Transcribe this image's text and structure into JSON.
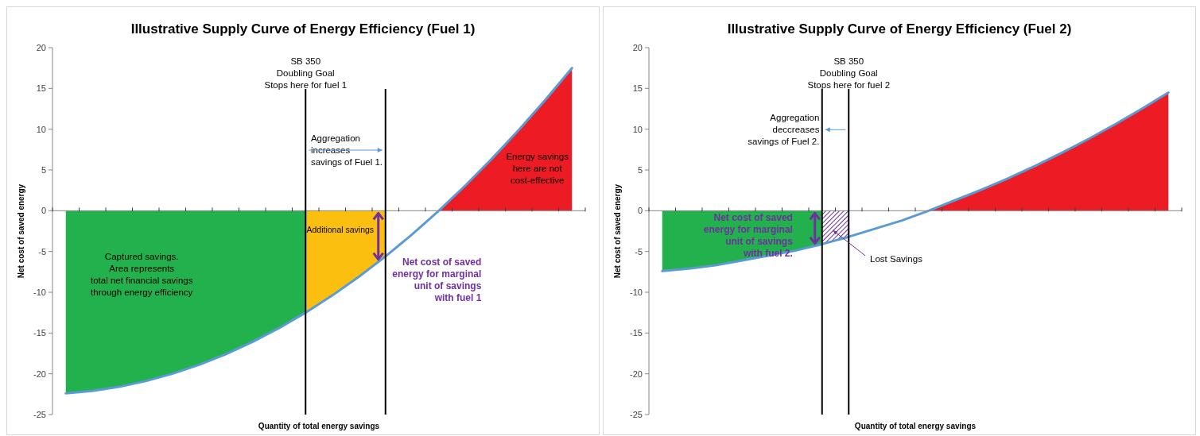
{
  "chart_data": [
    {
      "type": "area",
      "title": "Illustrative Supply Curve of Energy Efficiency (Fuel 1)",
      "xlabel": "Quantity of total energy savings",
      "ylabel": "Net cost of saved energy",
      "categories": [
        null,
        null,
        null,
        null,
        null,
        null,
        null,
        null,
        null,
        null,
        null,
        null,
        null,
        null,
        null,
        null,
        null,
        null,
        null,
        null
      ],
      "ylim": [
        -25,
        20
      ],
      "yticks": [
        -25,
        -20,
        -15,
        -10,
        -5,
        0,
        5,
        10,
        15,
        20
      ],
      "tick_labels": "y",
      "series": [
        {
          "color": "#22b14c",
          "values": [
            -22.4,
            -22.1,
            -21.6,
            -20.9,
            -20.0,
            -18.9,
            -17.6,
            -16.1,
            -14.4,
            -12.5,
            null,
            null,
            null,
            null,
            null,
            null,
            null,
            null,
            null,
            null
          ]
        },
        {
          "color": "#fbbf0f",
          "values": [
            null,
            null,
            null,
            null,
            null,
            null,
            null,
            null,
            null,
            -12.5,
            -10.4,
            -8.1,
            -5.6,
            null,
            null,
            null,
            null,
            null,
            null,
            null
          ]
        },
        {
          "color": "#ed1c24",
          "values": [
            null,
            null,
            null,
            null,
            null,
            null,
            null,
            null,
            null,
            null,
            null,
            null,
            null,
            null,
            0,
            3.1,
            6.4,
            9.9,
            13.6,
            17.5
          ]
        },
        {
          "type": "line",
          "color": "#5b9bd5",
          "values": [
            -22.4,
            -22.1,
            -21.6,
            -20.9,
            -20.0,
            -18.9,
            -17.6,
            -16.1,
            -14.4,
            -12.5,
            -10.4,
            -8.1,
            -5.6,
            -2.9,
            0,
            3.1,
            6.4,
            9.9,
            13.6,
            17.5
          ]
        }
      ],
      "annotations": [
        "Aggregation\nincreases\nsavings of Fuel 1.",
        "Net cost of saved\nenergy for marginal\nunit of savings\nwith fuel 1",
        "Additional savings",
        "Captured savings.\nArea represents\ntotal net financial savings\nthrough energy efficiency",
        "Energy savings\nhere are not\ncost-effective",
        "SB 350\nDoubling Goal\nStops here for fuel 1"
      ]
    },
    {
      "type": "area",
      "title": "Illustrative Supply Curve of Energy Efficiency (Fuel 2)",
      "xlabel": "Quantity of total energy savings",
      "ylabel": "Net cost of saved energy",
      "categories": [
        null,
        null,
        null,
        null,
        null,
        null,
        null,
        null,
        null,
        null,
        null,
        null,
        null,
        null,
        null,
        null,
        null,
        null,
        null,
        null
      ],
      "ylim": [
        -25,
        20
      ],
      "yticks": [
        -25,
        -20,
        -15,
        -10,
        -5,
        0,
        5,
        10,
        15,
        20
      ],
      "tick_labels": "y",
      "series": [
        {
          "color": "#22b14c",
          "values": [
            -7.4,
            -7.1,
            -6.7,
            -6.1,
            -5.5,
            -4.9,
            -4.1,
            null,
            null,
            null,
            null,
            null,
            null,
            null,
            null,
            null,
            null,
            null,
            null,
            null
          ]
        },
        {
          "color": "#7030a0",
          "values": [
            null,
            null,
            null,
            null,
            null,
            null,
            -4.1,
            -3.2,
            null,
            null,
            null,
            null,
            null,
            null,
            null,
            null,
            null,
            null,
            null,
            null
          ]
        },
        {
          "color": "#ed1c24",
          "values": [
            null,
            null,
            null,
            null,
            null,
            null,
            null,
            null,
            null,
            null,
            0,
            1.3,
            2.6,
            4.0,
            5.5,
            7.1,
            8.8,
            10.6,
            12.5,
            14.5
          ]
        },
        {
          "type": "line",
          "color": "#5b9bd5",
          "values": [
            -7.4,
            -7.1,
            -6.7,
            -6.1,
            -5.5,
            -4.9,
            -4.1,
            -3.2,
            -2.2,
            -1.2,
            0,
            1.3,
            2.6,
            4.0,
            5.5,
            7.1,
            8.8,
            10.6,
            12.5,
            14.5
          ]
        }
      ],
      "annotations": [
        "Aggregation\ndeccreases\nsavings of Fuel 2.",
        "Net cost of saved\nenergy for marginal\nunit of savings\nwith fuel 2.",
        "Lost Savings",
        "SB 350\nDoubling Goal\nStops here for fuel 2"
      ]
    }
  ]
}
